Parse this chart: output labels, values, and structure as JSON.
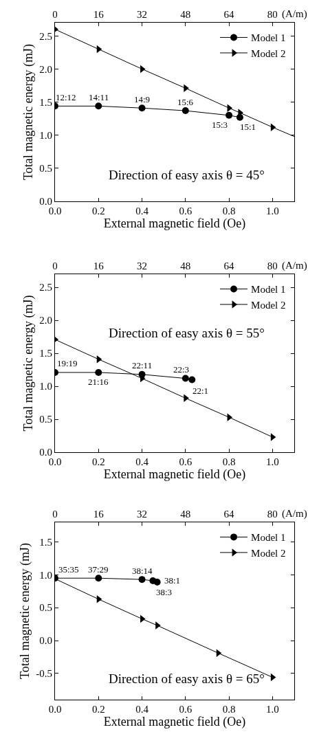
{
  "chart_data": [
    {
      "type": "line",
      "xlabel": "External magnetic field (Oe)",
      "ylabel": "Total magnetic energy (mJ)",
      "x2label": "(A/m)",
      "legend": "top right",
      "xlim": [
        0,
        1.1
      ],
      "xticks": [
        {
          "value": 0,
          "label": "0.0"
        },
        {
          "value": 0.2,
          "label": "0.2"
        },
        {
          "value": 0.4,
          "label": "0.4"
        },
        {
          "value": 0.6,
          "label": "0.6"
        },
        {
          "value": 0.8,
          "label": "0.8"
        },
        {
          "value": 1.0,
          "label": "1.0"
        }
      ],
      "x2lim": [
        0,
        88
      ],
      "x2ticks": [
        0,
        16,
        32,
        48,
        64,
        80
      ],
      "ylim": [
        0,
        2.7
      ],
      "yticks": [
        {
          "value": 0,
          "label": "0.0"
        },
        0.5,
        {
          "value": 1.0,
          "label": "1.0"
        },
        1.5,
        {
          "value": 2.0,
          "label": "2.0"
        },
        2.5
      ],
      "series": [
        {
          "name": "Model 1",
          "color": "#000000",
          "marker": "circle",
          "x": [
            0,
            0.2,
            0.4,
            0.6,
            0.8,
            0.85
          ],
          "values": [
            1.44,
            1.44,
            1.41,
            1.37,
            1.3,
            1.27
          ]
        },
        {
          "name": "Model 2",
          "color": "#000000",
          "marker": "triangle",
          "x": [
            0,
            0.2,
            0.4,
            0.6,
            0.8,
            0.85,
            1.0
          ],
          "values": [
            2.6,
            2.3,
            2.0,
            1.71,
            1.41,
            1.34,
            1.12
          ]
        },
        {
          "color": "#000000",
          "marker": "none",
          "x": [
            1.0,
            1.1
          ],
          "values": [
            1.12,
            0.98
          ]
        }
      ],
      "annotations": [
        {
          "text": "12:12",
          "x": 0,
          "y": 1.44
        },
        {
          "text": "14:11",
          "x": 0.2,
          "y": 1.44
        },
        {
          "text": "14:9",
          "x": 0.4,
          "y": 1.41
        },
        {
          "text": "15:6",
          "x": 0.6,
          "y": 1.37
        },
        {
          "text": "15:3",
          "x": 0.8,
          "y": 1.3
        },
        {
          "text": "15:1",
          "x": 0.85,
          "y": 1.27
        },
        "Direction of easy axis θ = 45°"
      ]
    },
    {
      "type": "line",
      "xlabel": "External magnetic field (Oe)",
      "ylabel": "Total magnetic energy (mJ)",
      "x2label": "(A/m)",
      "legend": "top right",
      "xlim": [
        0,
        1.1
      ],
      "xticks": [
        {
          "value": 0,
          "label": "0.0"
        },
        {
          "value": 0.2,
          "label": "0.2"
        },
        {
          "value": 0.4,
          "label": "0.4"
        },
        {
          "value": 0.6,
          "label": "0.6"
        },
        {
          "value": 0.8,
          "label": "0.8"
        },
        {
          "value": 1.0,
          "label": "1.0"
        }
      ],
      "x2lim": [
        0,
        88
      ],
      "x2ticks": [
        0,
        16,
        32,
        48,
        64,
        80
      ],
      "ylim": [
        0,
        2.7
      ],
      "yticks": [
        {
          "value": 0,
          "label": "0.0"
        },
        0.5,
        {
          "value": 1.0,
          "label": "1.0"
        },
        1.5,
        {
          "value": 2.0,
          "label": "2.0"
        },
        2.5
      ],
      "series": [
        {
          "name": "Model 1",
          "color": "#000000",
          "marker": "circle",
          "x": [
            0,
            0.2,
            0.4,
            0.6,
            0.63
          ],
          "values": [
            1.21,
            1.21,
            1.18,
            1.12,
            1.1
          ]
        },
        {
          "name": "Model 2",
          "color": "#000000",
          "marker": "triangle",
          "x": [
            0,
            0.2,
            0.4,
            0.6,
            0.8,
            1.0
          ],
          "values": [
            1.71,
            1.41,
            1.12,
            0.82,
            0.53,
            0.23
          ]
        }
      ],
      "annotations": [
        {
          "text": "19:19",
          "x": 0,
          "y": 1.21
        },
        {
          "text": "21:16",
          "x": 0.2,
          "y": 1.21
        },
        {
          "text": "22:11",
          "x": 0.4,
          "y": 1.18
        },
        {
          "text": "22:3",
          "x": 0.6,
          "y": 1.12
        },
        {
          "text": "22:1",
          "x": 0.63,
          "y": 1.1
        },
        "Direction of easy axis θ = 55°"
      ]
    },
    {
      "type": "line",
      "xlabel": "External magnetic field (Oe)",
      "ylabel": "Total magnetic energy (mJ)",
      "x2label": "(A/m)",
      "legend": "top right",
      "xlim": [
        0,
        1.1
      ],
      "xticks": [
        {
          "value": 0,
          "label": "0.0"
        },
        {
          "value": 0.2,
          "label": "0.2"
        },
        {
          "value": 0.4,
          "label": "0.4"
        },
        {
          "value": 0.6,
          "label": "0.6"
        },
        {
          "value": 0.8,
          "label": "0.8"
        },
        {
          "value": 1.0,
          "label": "1.0"
        }
      ],
      "x2lim": [
        0,
        88
      ],
      "x2ticks": [
        0,
        16,
        32,
        48,
        64,
        80
      ],
      "ylim": [
        -0.9,
        1.8
      ],
      "yticks": [
        -0.5,
        {
          "value": 0,
          "label": "0.0"
        },
        0.5,
        {
          "value": 1.0,
          "label": "1.0"
        },
        1.5
      ],
      "series": [
        {
          "name": "Model 1",
          "color": "#000000",
          "marker": "circle",
          "x": [
            0,
            0.2,
            0.4,
            0.45,
            0.47
          ],
          "values": [
            0.95,
            0.95,
            0.93,
            0.91,
            0.89
          ]
        },
        {
          "name": "Model 2",
          "color": "#000000",
          "marker": "triangle",
          "x": [
            0,
            0.2,
            0.4,
            0.47,
            0.75,
            1.0
          ],
          "values": [
            0.94,
            0.63,
            0.33,
            0.23,
            -0.19,
            -0.56
          ]
        }
      ],
      "annotations": [
        {
          "text": "35:35",
          "x": 0,
          "y": 0.95
        },
        {
          "text": "37:29",
          "x": 0.2,
          "y": 0.95
        },
        {
          "text": "38:14",
          "x": 0.4,
          "y": 0.93
        },
        {
          "text": "38:3",
          "x": 0.45,
          "y": 0.91
        },
        {
          "text": "38:1",
          "x": 0.47,
          "y": 0.89
        },
        "Direction of easy axis θ = 65°"
      ]
    }
  ]
}
